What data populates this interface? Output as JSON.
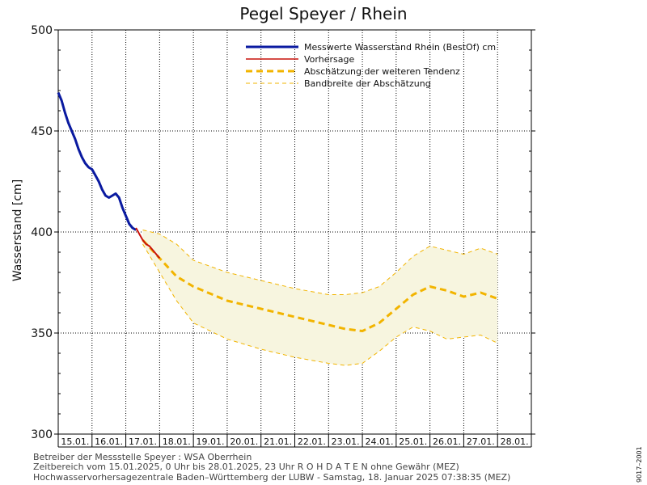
{
  "chart_data": {
    "type": "line",
    "title": "Pegel Speyer / Rhein",
    "ylabel": "Wasserstand [cm]",
    "xlabel": "",
    "ylim": [
      300,
      500
    ],
    "yticks": [
      300,
      350,
      400,
      450,
      500
    ],
    "grid": true,
    "legend_position": "top-right",
    "categories": [
      "15.01.",
      "16.01.",
      "17.01.",
      "18.01.",
      "19.01.",
      "20.01.",
      "21.01.",
      "22.01.",
      "23.01.",
      "24.01.",
      "25.01.",
      "26.01.",
      "27.01.",
      "28.01."
    ],
    "legend": [
      {
        "label": "Messwerte Wasserstand Rhein (BestOf)  cm",
        "color": "#0a1aa0",
        "style": "solid-thick"
      },
      {
        "label": "Vorhersage",
        "color": "#c8120a",
        "style": "solid"
      },
      {
        "label": "Abschätzung der weiteren Tendenz",
        "color": "#f2b400",
        "style": "dashed-thick"
      },
      {
        "label": "Bandbreite der Abschätzung",
        "color": "#f2b400",
        "style": "dashed-thin"
      }
    ],
    "series": [
      {
        "name": "Messwerte Wasserstand Rhein (BestOf)  cm",
        "color": "#0a1aa0",
        "x": [
          0.0,
          0.1,
          0.2,
          0.3,
          0.4,
          0.5,
          0.6,
          0.7,
          0.8,
          0.9,
          1.0,
          1.1,
          1.2,
          1.3,
          1.4,
          1.5,
          1.6,
          1.7,
          1.8,
          1.9,
          2.0,
          2.1,
          2.2,
          2.3,
          2.4,
          2.5,
          2.6,
          2.7,
          2.8,
          2.9,
          3.0
        ],
        "y": [
          469,
          465,
          459,
          454,
          450,
          446,
          441,
          437,
          434,
          432,
          431,
          428,
          425,
          421,
          418,
          417,
          418,
          419,
          417,
          412,
          408,
          404,
          402,
          401,
          null,
          null,
          null,
          null,
          null,
          null,
          null
        ]
      },
      {
        "name": "Vorhersage",
        "color": "#c8120a",
        "x": [
          2.3,
          2.4,
          2.5,
          2.6,
          2.7,
          2.8,
          2.9,
          3.0
        ],
        "y": [
          402,
          399,
          396,
          394,
          393,
          391,
          389,
          387
        ]
      },
      {
        "name": "Abschätzung der weiteren Tendenz",
        "color": "#f2b400",
        "x": [
          2.5,
          3.0,
          3.5,
          4.0,
          5.0,
          6.0,
          7.0,
          8.0,
          8.5,
          9.0,
          9.5,
          10.0,
          10.5,
          11.0,
          11.5,
          12.0,
          12.5,
          13.0
        ],
        "y": [
          396,
          387,
          378,
          373,
          366,
          362,
          358,
          354,
          352,
          351,
          355,
          362,
          369,
          373,
          371,
          368,
          370,
          367
        ]
      }
    ],
    "band": {
      "name": "Bandbreite der Abschätzung",
      "color": "#f2b400",
      "fill": "#f7f5df",
      "x": [
        2.5,
        3.0,
        3.5,
        4.0,
        5.0,
        6.0,
        7.0,
        8.0,
        8.5,
        9.0,
        9.5,
        10.0,
        10.5,
        11.0,
        11.5,
        12.0,
        12.5,
        13.0
      ],
      "upper": [
        401,
        399,
        394,
        386,
        380,
        376,
        372,
        369,
        369,
        370,
        373,
        380,
        388,
        393,
        391,
        389,
        392,
        389
      ],
      "lower": [
        394,
        380,
        366,
        355,
        347,
        342,
        338,
        335,
        334,
        335,
        341,
        348,
        353,
        351,
        347,
        348,
        349,
        345
      ]
    }
  },
  "footer": {
    "line1": "Betreiber der Messstelle Speyer : WSA Oberrhein",
    "line2": "Zeitbereich vom 15.01.2025, 0 Uhr bis 28.01.2025, 23 Uhr    R O H D A T E N ohne Gewähr (MEZ)",
    "line3": "Hochwasservorhersagezentrale Baden–Württemberg der LUBW - Samstag, 18. Januar 2025 07:38:35 (MEZ)"
  },
  "side_code": "9017–2001"
}
